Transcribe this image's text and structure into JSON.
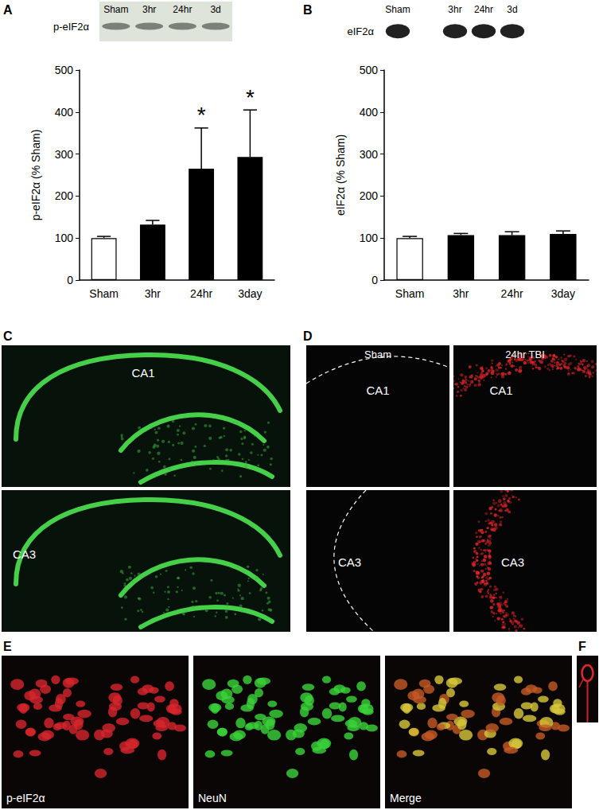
{
  "chart_data": [
    {
      "type": "bar",
      "panel": "A",
      "categories": [
        "Sham",
        "3hr",
        "24hr",
        "3day"
      ],
      "values": [
        100,
        132,
        265,
        293
      ],
      "errors": [
        4,
        10,
        97,
        112
      ],
      "colors": [
        "#ffffff",
        "#000000",
        "#000000",
        "#000000"
      ],
      "ylabel": "p-eIF2α (% Sham)",
      "ylim": [
        0,
        500
      ],
      "yticks": [
        0,
        100,
        200,
        300,
        400,
        500
      ],
      "grid": false,
      "annotations": [
        {
          "category": "24hr",
          "text": "*"
        },
        {
          "category": "3day",
          "text": "*"
        }
      ]
    },
    {
      "type": "bar",
      "panel": "B",
      "categories": [
        "Sham",
        "3hr",
        "24hr",
        "3day"
      ],
      "values": [
        100,
        107,
        107,
        110
      ],
      "errors": [
        4,
        4,
        8,
        7
      ],
      "colors": [
        "#ffffff",
        "#000000",
        "#000000",
        "#000000"
      ],
      "ylabel": "eIF2α (% Sham)",
      "ylim": [
        0,
        500
      ],
      "yticks": [
        0,
        100,
        200,
        300,
        400,
        500
      ],
      "grid": false
    }
  ],
  "blots": [
    {
      "panel": "A",
      "row_label": "p-eIF2α",
      "lanes": [
        "Sham",
        "3hr",
        "24hr",
        "3d"
      ]
    },
    {
      "panel": "B",
      "row_label": "eIF2α",
      "lanes": [
        "Sham",
        null,
        "3hr",
        "24hr",
        "3d"
      ]
    }
  ],
  "images": [
    {
      "panel": "C",
      "labels": [
        "CA1",
        "CA3"
      ]
    },
    {
      "panel": "D",
      "columns": [
        "Sham",
        "24hr TBI"
      ],
      "rows": [
        "CA1",
        "CA3"
      ]
    },
    {
      "panel": "E",
      "labels": [
        "p-eIF2α",
        "NeuN",
        "Merge"
      ]
    },
    {
      "panel": "F"
    }
  ]
}
